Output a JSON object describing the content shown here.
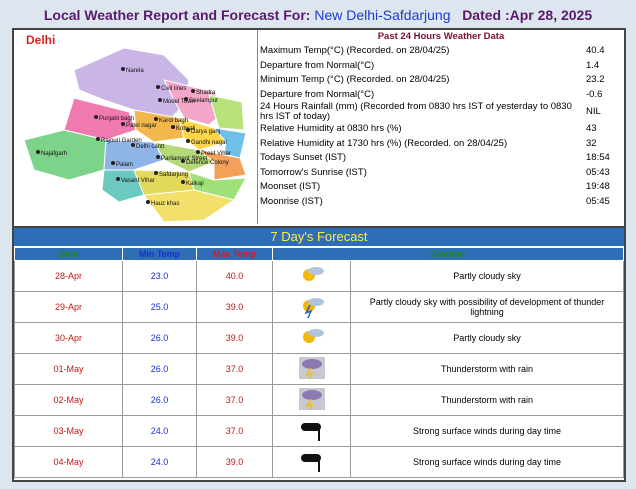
{
  "header": {
    "title": "Local Weather Report and Forecast For:",
    "station": "New Delhi-Safdarjung",
    "dated": "Dated :Apr 28, 2025"
  },
  "map": {
    "title": "Delhi",
    "places": [
      "Narela",
      "Civil lines",
      "Model Town",
      "Shadra",
      "Seelampur",
      "Punjabi bagh",
      "Karol bagh",
      "Kotwali",
      "Patel nagar",
      "Darya ganj",
      "Rajouri Garden",
      "Gandhi nagar",
      "Delhi cantt",
      "Preet Vihar",
      "Parliament Street",
      "Najafgarh",
      "Palam",
      "Vasant Vihar",
      "Defence Colony",
      "Safdarjung",
      "Kalkaji",
      "Hauz khas"
    ]
  },
  "past": {
    "title": "Past 24 Hours Weather Data",
    "rows": [
      [
        "Maximum Temp(°C) (Recorded. on 28/04/25)",
        "40.4"
      ],
      [
        "Departure from Normal(°C)",
        "1.4"
      ],
      [
        "Minimum Temp (°C) (Recorded. on 28/04/25)",
        "23.2"
      ],
      [
        "Departure from Normal(°C)",
        "-0.6"
      ],
      [
        "24 Hours Rainfall (mm) (Recorded from 0830 hrs IST of yesterday to 0830 hrs IST of today)",
        "NIL"
      ],
      [
        "Relative Humidity at 0830 hrs (%)",
        "43"
      ],
      [
        "Relative Humidity at 1730 hrs (%) (Recorded. on 28/04/25)",
        "32"
      ],
      [
        "Todays Sunset (IST)",
        "18:54"
      ],
      [
        "Tomorrow's Sunrise (IST)",
        "05:43"
      ],
      [
        "Moonset (IST)",
        "19:48"
      ],
      [
        "Moonrise (IST)",
        "05:45"
      ]
    ]
  },
  "forecast": {
    "title": "7 Day's Forecast",
    "columns": [
      "Date",
      "Min Temp",
      "Max Temp",
      "Weather"
    ],
    "rows": [
      [
        "28-Apr",
        "23.0",
        "40.0",
        "Partly cloudy sky"
      ],
      [
        "29-Apr",
        "25.0",
        "39.0",
        "Partly cloudy sky with possibility of development of thunder lightning"
      ],
      [
        "30-Apr",
        "26.0",
        "39.0",
        "Partly cloudy sky"
      ],
      [
        "01-May",
        "26.0",
        "37.0",
        "Thunderstorm with rain"
      ],
      [
        "02-May",
        "26.0",
        "37.0",
        "Thunderstorm with rain"
      ],
      [
        "03-May",
        "24.0",
        "37.0",
        "Strong surface winds during day time"
      ],
      [
        "04-May",
        "24.0",
        "39.0",
        "Strong surface winds during day time"
      ]
    ]
  }
}
